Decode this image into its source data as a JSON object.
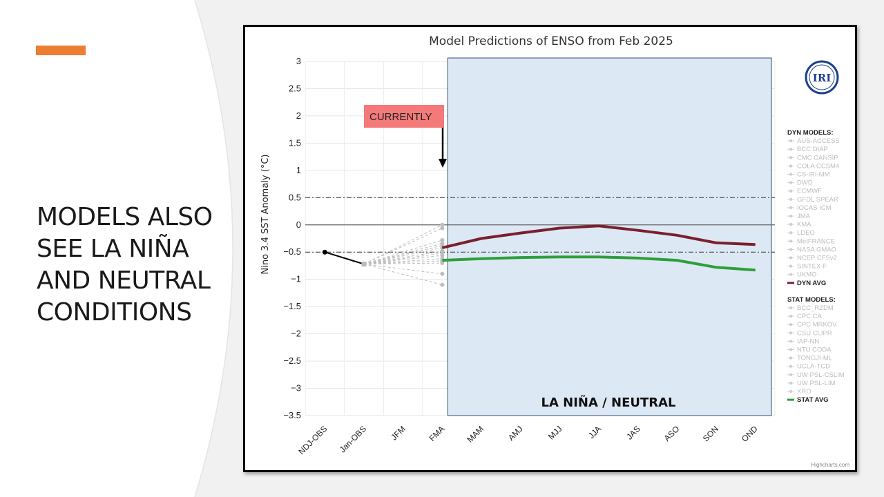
{
  "slide": {
    "title_lines": [
      "MODELS ALSO",
      "SEE LA NIÑA",
      "AND NEUTRAL",
      "CONDITIONS"
    ],
    "accent_color": "#ed7d31"
  },
  "chart_data": {
    "type": "line",
    "title": "Model Predictions of ENSO from Feb 2025",
    "xlabel": "",
    "ylabel": "Nino 3.4 SST Anomaly (°C)",
    "categories": [
      "NDJ-OBS",
      "Jan-OBS",
      "JFM",
      "FMA",
      "MAM",
      "AMJ",
      "MJJ",
      "JJA",
      "JAS",
      "ASO",
      "SON",
      "OND"
    ],
    "ylim": [
      -3.5,
      3
    ],
    "yticks": [
      3,
      2.5,
      2,
      1.5,
      1,
      0.5,
      0,
      -0.5,
      -1,
      -1.5,
      -2,
      -2.5,
      -3,
      -3.5
    ],
    "ytick_labels": [
      "3",
      "2.5",
      "2",
      "1.5",
      "1",
      "0.5",
      "0",
      "−0.5",
      "−1",
      "−1.5",
      "−2",
      "−2.5",
      "−3",
      "−3.5"
    ],
    "reference_lines": [
      0.5,
      -0.5
    ],
    "grid": true,
    "observed": {
      "name": "OBS",
      "color": "#000000",
      "values": [
        -0.5,
        -0.72
      ]
    },
    "individual_models_at_fma": [
      0.0,
      -0.06,
      -0.28,
      -0.34,
      -0.38,
      -0.42,
      -0.48,
      -0.52,
      -0.56,
      -0.62,
      -0.66,
      -0.7,
      -0.9,
      -1.1
    ],
    "series": [
      {
        "name": "DYN AVG",
        "color": "#7b1f2e",
        "values": [
          null,
          null,
          null,
          -0.42,
          -0.25,
          -0.15,
          -0.06,
          -0.02,
          -0.1,
          -0.19,
          -0.33,
          -0.36
        ]
      },
      {
        "name": "STAT AVG",
        "color": "#2e9e3a",
        "values": [
          null,
          null,
          null,
          -0.65,
          -0.62,
          -0.6,
          -0.59,
          -0.59,
          -0.61,
          -0.65,
          -0.78,
          -0.83
        ]
      }
    ],
    "annotations": {
      "currently_label": "CURRENTLY",
      "region_label": "LA NIÑA / NEUTRAL"
    },
    "legend": {
      "placement": "right",
      "dyn_header": "DYN MODELS:",
      "dyn_models": [
        "AUS-ACCESS",
        "BCC DIAP",
        "CMC CANSIP",
        "COLA CCSM4",
        "CS-IRI-MM",
        "DWD",
        "ECMWF",
        "GFDL SPEAR",
        "IOCAS ICM",
        "JMA",
        "KMA",
        "LDEO",
        "MetFRANCE",
        "NASA GMAO",
        "NCEP CFSv2",
        "SINTEX-F",
        "UKMO"
      ],
      "dyn_avg": "DYN AVG",
      "stat_header": "STAT MODELS:",
      "stat_models": [
        "BCC_RZDM",
        "CPC CA",
        "CPC MRKOV",
        "CSU CLIPR",
        "IAP-NN",
        "NTU CODA",
        "TONGJI-ML",
        "UCLA-TCD",
        "UW PSL-CSLIM",
        "UW PSL-LIM",
        "XRO"
      ],
      "stat_avg": "STAT AVG"
    },
    "logo_text": "IRI",
    "credit": "Highcharts.com"
  }
}
